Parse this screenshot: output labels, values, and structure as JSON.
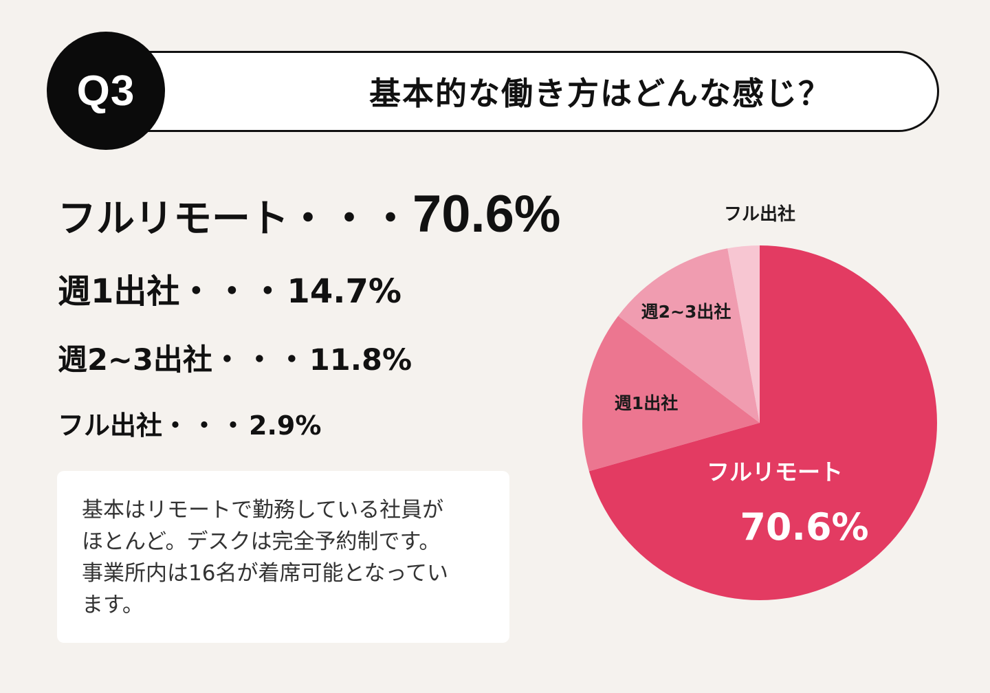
{
  "header": {
    "badge": "Q3",
    "question": "基本的な働き方はどんな感じ？"
  },
  "stats": [
    {
      "label": "フルリモート",
      "sep": "・・・",
      "value": "70.6%"
    },
    {
      "label": "週1出社",
      "sep": "・・・",
      "value": "14.7%"
    },
    {
      "label": "週2~3出社",
      "sep": "・・・",
      "value": "11.8%"
    },
    {
      "label": "フル出社",
      "sep": "・・・",
      "value": "2.9%"
    }
  ],
  "note": {
    "lines": [
      "基本はリモートで勤務している社員が",
      "ほとんど。デスクは完全予約制です。",
      "事業所内は16名が着席可能となってい",
      "ます。"
    ]
  },
  "chart_data": {
    "type": "pie",
    "slices": [
      {
        "label": "フルリモート",
        "value": 70.6,
        "display_value": "70.6%",
        "color": "#e33b62"
      },
      {
        "label": "週1出社",
        "value": 14.7,
        "color": "#ec7690"
      },
      {
        "label": "週2~3出社",
        "value": 11.8,
        "color": "#f09cb0"
      },
      {
        "label": "フル出社",
        "value": 2.9,
        "color": "#f7c6d2"
      }
    ],
    "start": "12 o'clock",
    "direction": "clockwise"
  }
}
